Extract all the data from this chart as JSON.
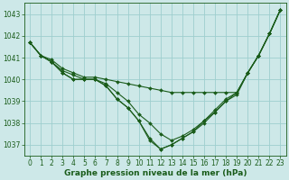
{
  "title": "Graphe pression niveau de la mer (hPa)",
  "background_color": "#cde8e8",
  "grid_color": "#9ecece",
  "line_color": "#1a5c1a",
  "xlim": [
    -0.5,
    23.5
  ],
  "ylim": [
    1036.5,
    1043.5
  ],
  "yticks": [
    1037,
    1038,
    1039,
    1040,
    1041,
    1042,
    1043
  ],
  "xticks": [
    0,
    1,
    2,
    3,
    4,
    5,
    6,
    7,
    8,
    9,
    10,
    11,
    12,
    13,
    14,
    15,
    16,
    17,
    18,
    19,
    20,
    21,
    22,
    23
  ],
  "series": [
    [
      1041.7,
      1041.1,
      1040.9,
      1040.5,
      1040.3,
      1040.1,
      1040.1,
      1040.0,
      1039.9,
      1039.8,
      1039.7,
      1039.6,
      1039.5,
      1039.4,
      1039.4,
      1039.4,
      1039.4,
      1039.4,
      1039.4,
      1039.4,
      1040.3,
      1041.1,
      1042.1,
      1043.2
    ],
    [
      1041.7,
      1041.1,
      1040.8,
      1040.4,
      1040.2,
      1040.0,
      1040.0,
      1039.8,
      1039.4,
      1039.0,
      1038.4,
      1038.0,
      1037.5,
      1037.2,
      1037.4,
      1037.7,
      1038.1,
      1038.5,
      1039.0,
      1039.4,
      1040.3,
      1041.1,
      1042.1,
      1043.2
    ],
    [
      1041.7,
      1041.1,
      1040.8,
      1040.3,
      1040.0,
      1040.0,
      1040.0,
      1039.7,
      1039.1,
      1038.7,
      1038.1,
      1037.3,
      1036.8,
      1037.0,
      1037.3,
      1037.6,
      1038.1,
      1038.6,
      1039.1,
      1039.4,
      1040.3,
      1041.1,
      1042.1,
      1043.2
    ],
    [
      1041.7,
      1041.1,
      1040.8,
      1040.3,
      1040.0,
      1040.0,
      1040.0,
      1039.7,
      1039.1,
      1038.7,
      1038.1,
      1037.2,
      1036.8,
      1037.0,
      1037.3,
      1037.6,
      1038.0,
      1038.5,
      1039.0,
      1039.3,
      1040.3,
      1041.1,
      1042.1,
      1043.2
    ]
  ],
  "marker": "D",
  "markersize": 2.0,
  "linewidth": 0.8,
  "tick_fontsize": 5.5,
  "title_fontsize": 6.5
}
